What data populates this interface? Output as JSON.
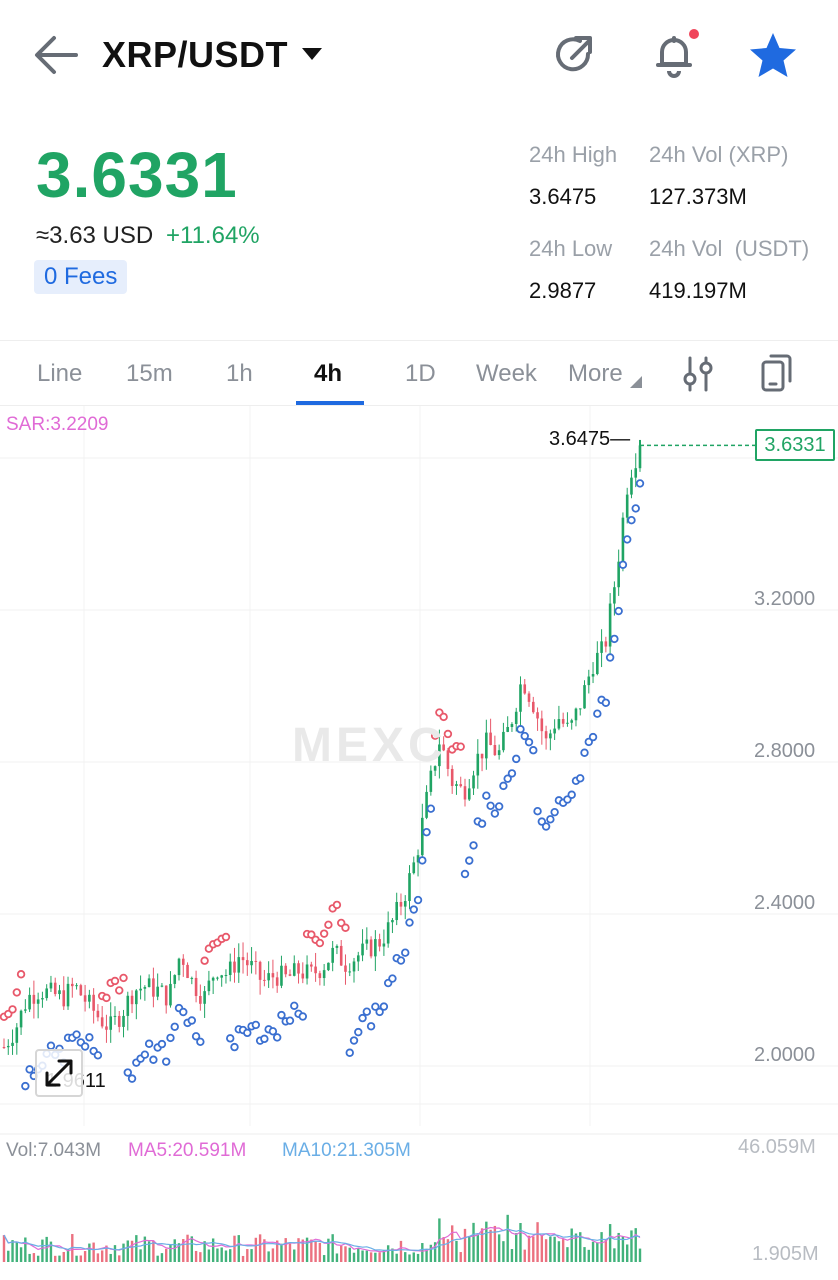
{
  "header": {
    "pair": "XRP/USDT",
    "back_icon": "arrow-left-icon",
    "caret_icon": "caret-down-icon",
    "refresh_icon": "refresh-icon",
    "bell_icon": "bell-icon",
    "star_icon": "star-icon",
    "star_color": "#1f6ae0",
    "notification_dot_color": "#f0455a"
  },
  "ticker": {
    "last_price": "3.6331",
    "usd_equiv": "≈3.63 USD",
    "change_pct": "+11.64%",
    "fees_badge": "0 Fees",
    "price_color": "#20a464"
  },
  "stats": {
    "high_label": "24h High",
    "high_value": "3.6475",
    "low_label": "24h Low",
    "low_value": "2.9877",
    "vol_base_label": "24h Vol (XRP)",
    "vol_base_value": "127.373M",
    "vol_quote_label": "24h Vol  (USDT)",
    "vol_quote_value": "419.197M"
  },
  "tabs": [
    {
      "label": "Line",
      "active": false
    },
    {
      "label": "15m",
      "active": false
    },
    {
      "label": "1h",
      "active": false
    },
    {
      "label": "4h",
      "active": true
    },
    {
      "label": "1D",
      "active": false
    },
    {
      "label": "Week",
      "active": false
    },
    {
      "label": "More",
      "active": false
    }
  ],
  "toolbar": {
    "indicator_icon": "sliders-icon",
    "copy_icon": "copy-device-icon"
  },
  "indicator": {
    "sar_text": "SAR:3.2209"
  },
  "chart": {
    "watermark": "MEXC",
    "current_price_tag": "3.6331",
    "high_marker": "3.6475",
    "low_marker": "1.9611",
    "expand_icon": "expand-arrows-icon",
    "y_axis_labels": [
      "3.2000",
      "2.8000",
      "2.4000",
      "2.0000"
    ],
    "up_color": "#20a464",
    "down_color": "#e8586a",
    "sar_up_color": "#3a6fd0",
    "sar_down_color": "#e8586a"
  },
  "volume": {
    "vol_text": "Vol:7.043M",
    "ma5_text": "MA5:20.591M",
    "ma10_text": "MA10:21.305M",
    "max_label": "46.059M",
    "min_label": "1.905M",
    "vol_color": "#8b9098",
    "ma5_color": "#e06bd6",
    "ma10_color": "#6aaee6"
  },
  "chart_data": {
    "type": "candlestick",
    "interval": "4h",
    "ylim": [
      1.9,
      3.7
    ],
    "y_ticks": [
      3.2,
      2.8,
      2.4,
      2.0
    ],
    "close_path": [
      2.05,
      2.1,
      2.18,
      2.2,
      2.19,
      2.18,
      2.21,
      2.17,
      2.13,
      2.1,
      2.14,
      2.2,
      2.21,
      2.2,
      2.18,
      2.3,
      2.22,
      2.18,
      2.26,
      2.24,
      2.29,
      2.26,
      2.22,
      2.24,
      2.23,
      2.25,
      2.24,
      2.26,
      2.3,
      2.27,
      2.29,
      2.31,
      2.33,
      2.38,
      2.45,
      2.55,
      2.72,
      2.86,
      2.75,
      2.72,
      2.8,
      2.85,
      2.82,
      2.9,
      3.02,
      2.95,
      2.85,
      2.92,
      2.88,
      2.96,
      3.06,
      3.1,
      3.3,
      3.55,
      3.6331
    ],
    "last_price": 3.6331,
    "high_24h": 3.6475,
    "low_marker": 1.9611
  }
}
